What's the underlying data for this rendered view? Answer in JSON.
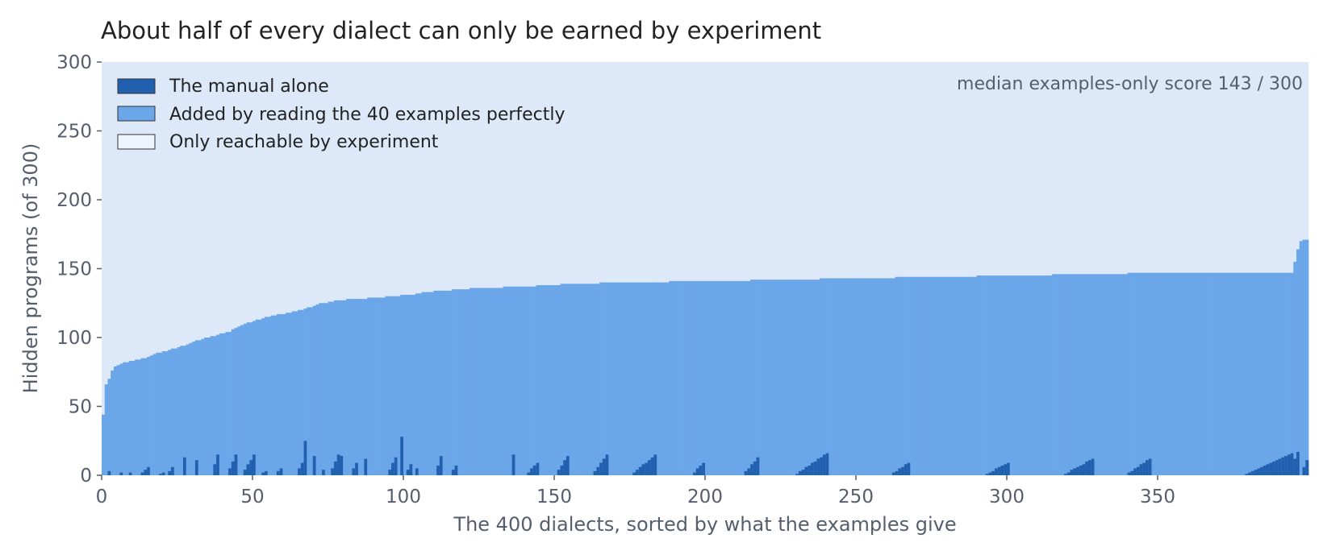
{
  "chart_data": {
    "type": "bar",
    "stacked": true,
    "title": "About half of every dialect can only be earned by experiment",
    "xlabel": "The 400 dialects, sorted by what the examples give",
    "ylabel": "Hidden programs (of 300)",
    "xlim": [
      0,
      400
    ],
    "ylim": [
      0,
      300
    ],
    "xticks": [
      0,
      50,
      100,
      150,
      200,
      250,
      300,
      350
    ],
    "yticks": [
      0,
      50,
      100,
      150,
      200,
      250,
      300
    ],
    "grid": false,
    "legend_position": "top-left",
    "annotation": "median examples-only score 143 / 300",
    "total_per_dialect": 300,
    "colors": {
      "manual": "#2160ae",
      "examples": "#6ba6e9",
      "experiment": "#dde9f8"
    },
    "series": [
      {
        "name": "The manual alone",
        "color": "#2160ae",
        "value_generation": "mostly 0; short ascending clusters reaching 9-17 near x 14, 28, 38, 45, 50, 67, 79, 87, 97, 113, 117, 136, 144, 153, 166, 182, 199, 216, 240, 266, 299, 326, 346, 392; spikes 25 at x 67 and 28 at x 99; final bar 10"
      },
      {
        "name": "Added by reading the 40 examples perfectly",
        "color": "#6ba6e9",
        "breakpoints": [
          [
            0,
            44
          ],
          [
            1,
            66
          ],
          [
            2,
            70
          ],
          [
            3,
            76
          ],
          [
            4,
            79
          ],
          [
            7,
            82
          ],
          [
            10,
            83
          ],
          [
            14,
            85
          ],
          [
            17,
            88
          ],
          [
            19,
            89
          ],
          [
            22,
            91
          ],
          [
            25,
            93
          ],
          [
            28,
            95
          ],
          [
            30,
            97
          ],
          [
            33,
            99
          ],
          [
            38,
            102
          ],
          [
            42,
            104
          ],
          [
            44,
            107
          ],
          [
            47,
            110
          ],
          [
            50,
            112
          ],
          [
            53,
            114
          ],
          [
            56,
            116
          ],
          [
            59,
            117
          ],
          [
            62,
            118
          ],
          [
            66,
            120
          ],
          [
            71,
            124
          ],
          [
            73,
            125
          ],
          [
            78,
            127
          ],
          [
            84,
            128
          ],
          [
            92,
            129
          ],
          [
            96,
            130
          ],
          [
            102,
            131
          ],
          [
            107,
            133
          ],
          [
            112,
            134
          ],
          [
            125,
            136
          ],
          [
            140,
            137
          ],
          [
            155,
            139
          ],
          [
            175,
            140
          ],
          [
            200,
            141
          ],
          [
            230,
            142
          ],
          [
            245,
            143
          ],
          [
            280,
            144
          ],
          [
            300,
            145
          ],
          [
            330,
            146
          ],
          [
            350,
            147
          ],
          [
            390,
            147
          ],
          [
            394,
            147
          ],
          [
            395,
            155
          ],
          [
            396,
            164
          ],
          [
            397,
            170
          ],
          [
            399,
            171
          ]
        ]
      },
      {
        "name": "Only reachable by experiment",
        "color": "#dde9f8",
        "rule": "300 minus the two series above"
      }
    ]
  }
}
